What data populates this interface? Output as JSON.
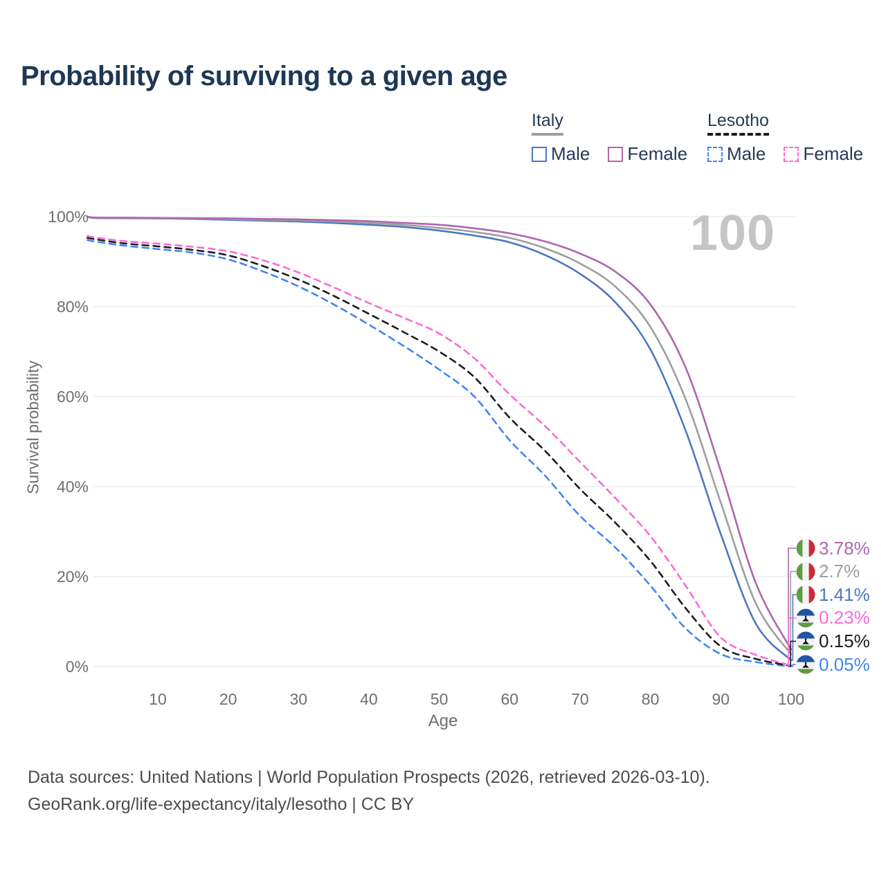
{
  "title": "Probability of surviving to a given age",
  "hover_age_label": "100",
  "legend": {
    "groups": [
      {
        "label": "Italy",
        "underline_style": "solid",
        "underline_color": "#9e9e9e",
        "items": [
          {
            "label": "Male",
            "color": "#4a77c4",
            "dash": false
          },
          {
            "label": "Female",
            "color": "#b164ae",
            "dash": false
          }
        ]
      },
      {
        "label": "Lesotho",
        "underline_style": "dashed",
        "underline_color": "#1c1c1c",
        "items": [
          {
            "label": "Male",
            "color": "#3f86f0",
            "dash": true
          },
          {
            "label": "Female",
            "color": "#fb6ad8",
            "dash": true
          }
        ]
      }
    ]
  },
  "chart_data": {
    "type": "line",
    "title": "Probability of surviving to a given age",
    "xlabel": "Age",
    "ylabel": "Survival probability",
    "xlim": [
      0,
      100
    ],
    "ylim": [
      0,
      100
    ],
    "x_ticks": [
      10,
      20,
      30,
      40,
      50,
      60,
      70,
      80,
      90,
      100
    ],
    "y_ticks": [
      0,
      20,
      40,
      60,
      80,
      100
    ],
    "y_tick_suffix": "%",
    "grid": "horizontal",
    "gridline_color": "#e9e9e9",
    "hovered_x": 100,
    "ages": [
      0,
      1,
      5,
      10,
      15,
      20,
      25,
      30,
      35,
      40,
      45,
      50,
      55,
      60,
      65,
      70,
      75,
      80,
      85,
      90,
      95,
      100
    ],
    "series": [
      {
        "name": "Lesotho Male",
        "country": "lesotho",
        "color": "#3f86f0",
        "style": "dashed",
        "end_label": "0.05%",
        "values": [
          94.8,
          94.5,
          93.6,
          92.8,
          92.0,
          90.5,
          87.8,
          84.5,
          80.5,
          76.0,
          71.2,
          66.0,
          60.0,
          50.3,
          42.5,
          33.5,
          26.5,
          18.0,
          8.5,
          2.8,
          1.0,
          0.05
        ]
      },
      {
        "name": "Lesotho Total",
        "country": "lesotho",
        "color": "#1c1c1c",
        "style": "dashed",
        "end_label": "0.15%",
        "values": [
          95.3,
          95.0,
          94.1,
          93.4,
          92.6,
          91.4,
          89.0,
          86.0,
          82.4,
          78.4,
          74.3,
          70.0,
          64.3,
          55.3,
          48.0,
          39.5,
          32.0,
          23.5,
          13.0,
          4.5,
          1.7,
          0.15
        ]
      },
      {
        "name": "Lesotho Female",
        "country": "lesotho",
        "color": "#fb6ad8",
        "style": "dashed",
        "end_label": "0.23%",
        "values": [
          95.7,
          95.4,
          94.6,
          94.0,
          93.3,
          92.3,
          90.3,
          87.6,
          84.3,
          80.8,
          77.5,
          74.0,
          68.5,
          60.5,
          53.5,
          45.5,
          37.5,
          29.0,
          18.0,
          6.5,
          2.6,
          0.23
        ]
      },
      {
        "name": "Italy Male",
        "country": "italy",
        "color": "#4a77c4",
        "style": "solid",
        "end_label": "1.41%",
        "values": [
          100,
          99.7,
          99.65,
          99.6,
          99.5,
          99.3,
          99.1,
          98.9,
          98.6,
          98.2,
          97.7,
          96.9,
          95.8,
          94.3,
          91.5,
          87.3,
          81.0,
          70.5,
          52.5,
          29.5,
          9.5,
          1.41
        ]
      },
      {
        "name": "Italy Total",
        "country": "italy",
        "color": "#9e9e9e",
        "style": "solid",
        "end_label": "2.7%",
        "values": [
          100,
          99.75,
          99.7,
          99.65,
          99.55,
          99.45,
          99.3,
          99.15,
          98.9,
          98.6,
          98.15,
          97.5,
          96.6,
          95.3,
          93.0,
          89.6,
          84.5,
          75.5,
          59.5,
          36.5,
          14.0,
          2.7
        ]
      },
      {
        "name": "Italy Female",
        "country": "italy",
        "color": "#b164ae",
        "style": "solid",
        "end_label": "3.78%",
        "values": [
          100,
          99.8,
          99.75,
          99.7,
          99.65,
          99.6,
          99.5,
          99.4,
          99.2,
          99.0,
          98.6,
          98.2,
          97.4,
          96.3,
          94.5,
          91.8,
          87.8,
          80.5,
          66.5,
          43.5,
          18.5,
          3.78
        ]
      }
    ],
    "annotations": [
      {
        "flag": "italy",
        "label": "3.78%",
        "color": "#b164ae",
        "series": "Italy Female"
      },
      {
        "flag": "italy",
        "label": "2.7%",
        "color": "#9e9e9e",
        "series": "Italy Total"
      },
      {
        "flag": "italy",
        "label": "1.41%",
        "color": "#4a77c4",
        "series": "Italy Male"
      },
      {
        "flag": "lesotho",
        "label": "0.23%",
        "color": "#fb6ad8",
        "series": "Lesotho Female"
      },
      {
        "flag": "lesotho",
        "label": "0.15%",
        "color": "#1c1c1c",
        "series": "Lesotho Total"
      },
      {
        "flag": "lesotho",
        "label": "0.05%",
        "color": "#3f86f0",
        "series": "Lesotho Male"
      }
    ],
    "flag_colors": {
      "italy": {
        "left": "#5d9c43",
        "mid": "#f2f2f2",
        "right": "#cd2a38"
      },
      "lesotho": {
        "top": "#1e55a5",
        "mid": "#f2f2f2",
        "bottom": "#5d9c43",
        "hat": "#111111"
      }
    }
  },
  "footer": {
    "line1": "Data sources: United Nations | World Population Prospects (2026, retrieved 2026-03-10).",
    "line2": "GeoRank.org/life-expectancy/italy/lesotho | CC BY"
  }
}
